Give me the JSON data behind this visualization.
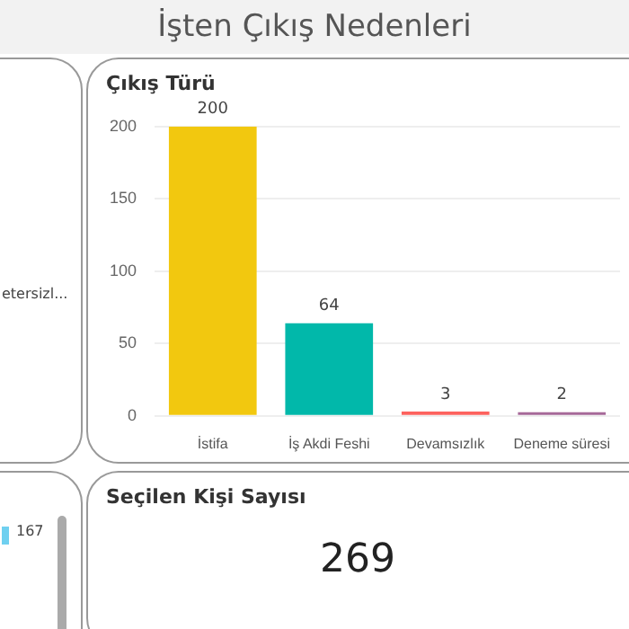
{
  "chart_data": [
    {
      "type": "other",
      "title": "İşten Çıkış Nedenleri"
    },
    {
      "type": "other",
      "annotations": [
        "etersizl...",
        "167"
      ]
    },
    {
      "type": "bar",
      "title": "Çıkış Türü",
      "categories": [
        "İstifa",
        "İş Akdi Feshi",
        "Devamsızlık",
        "Deneme süresi"
      ],
      "values": [
        200,
        64,
        3,
        2
      ],
      "colors": [
        "#f2c80f",
        "#01b8aa",
        "#fd625e",
        "#a66999"
      ],
      "ylim": [
        0,
        200
      ],
      "yticks": [
        0,
        50,
        100,
        150,
        200
      ],
      "grid": "y",
      "data_labels": true,
      "legend": false
    },
    {
      "type": "other",
      "title": "Seçilen Kişi Sayısı",
      "annotations": [
        "269"
      ]
    }
  ]
}
